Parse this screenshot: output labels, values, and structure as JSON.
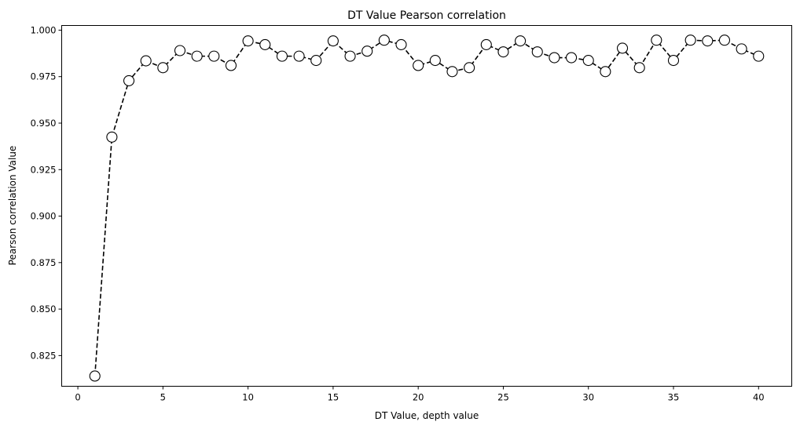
{
  "chart_data": {
    "type": "line",
    "title": "DT Value Pearson correlation",
    "xlabel": "DT Value, depth value",
    "ylabel": "Pearson correlation Value",
    "xlim": [
      -0.95,
      41.95
    ],
    "ylim": [
      0.8085,
      1.0025
    ],
    "xticks": [
      0,
      5,
      10,
      15,
      20,
      25,
      30,
      35,
      40
    ],
    "xtick_labels": [
      "0",
      "5",
      "10",
      "15",
      "20",
      "25",
      "30",
      "35",
      "40"
    ],
    "yticks": [
      0.825,
      0.85,
      0.875,
      0.9,
      0.925,
      0.95,
      0.975,
      1.0
    ],
    "ytick_labels": [
      "0.825",
      "0.850",
      "0.875",
      "0.900",
      "0.925",
      "0.950",
      "0.975",
      "1.000"
    ],
    "grid": false,
    "line_style": "dashed",
    "line_color": "#000000",
    "marker": "circle",
    "marker_face_color": "#ffffff",
    "marker_edge_color": "#000000",
    "x": [
      1,
      2,
      3,
      4,
      5,
      6,
      7,
      8,
      9,
      10,
      11,
      12,
      13,
      14,
      15,
      16,
      17,
      18,
      19,
      20,
      21,
      22,
      23,
      24,
      25,
      26,
      27,
      28,
      29,
      30,
      31,
      32,
      33,
      34,
      35,
      36,
      37,
      38,
      39,
      40
    ],
    "y": [
      0.814,
      0.9425,
      0.9728,
      0.9835,
      0.9798,
      0.989,
      0.986,
      0.986,
      0.981,
      0.9942,
      0.9922,
      0.986,
      0.986,
      0.9837,
      0.9942,
      0.986,
      0.9887,
      0.9946,
      0.9922,
      0.981,
      0.9837,
      0.9777,
      0.9798,
      0.9922,
      0.9883,
      0.9942,
      0.9883,
      0.9852,
      0.9852,
      0.9837,
      0.9777,
      0.9903,
      0.9798,
      0.9946,
      0.9837,
      0.9946,
      0.9942,
      0.9946,
      0.9899,
      0.986
    ]
  }
}
